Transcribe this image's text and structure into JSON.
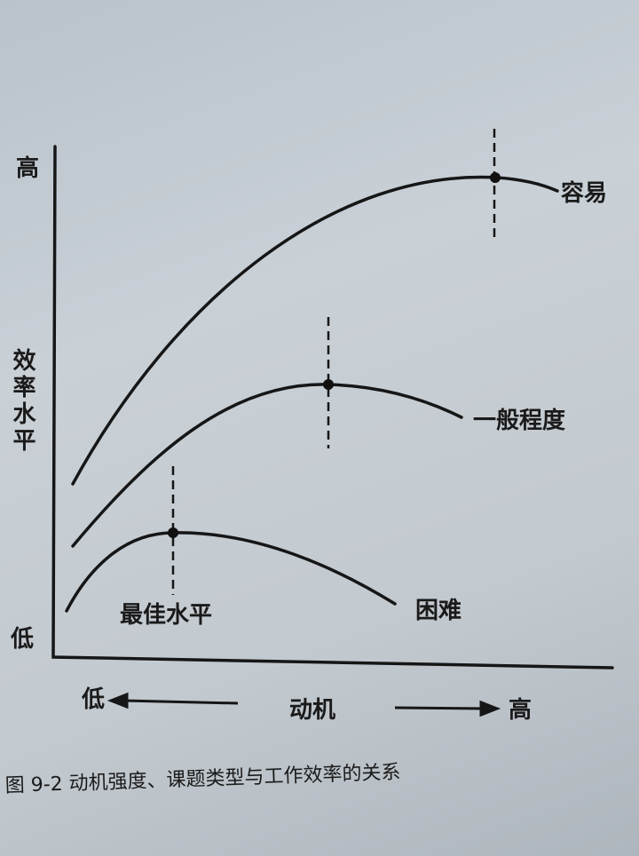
{
  "diagram": {
    "y_axis": {
      "high": "高",
      "label": "效率水平",
      "low": "低"
    },
    "x_axis": {
      "low": "低",
      "label": "动机",
      "high": "高"
    },
    "curves": [
      {
        "label": "容易"
      },
      {
        "label": "一般程度"
      },
      {
        "label": "困难"
      }
    ],
    "optimum_label": "最佳水平",
    "caption": "图 9-2   动机强度、课题类型与工作效率的关系"
  }
}
